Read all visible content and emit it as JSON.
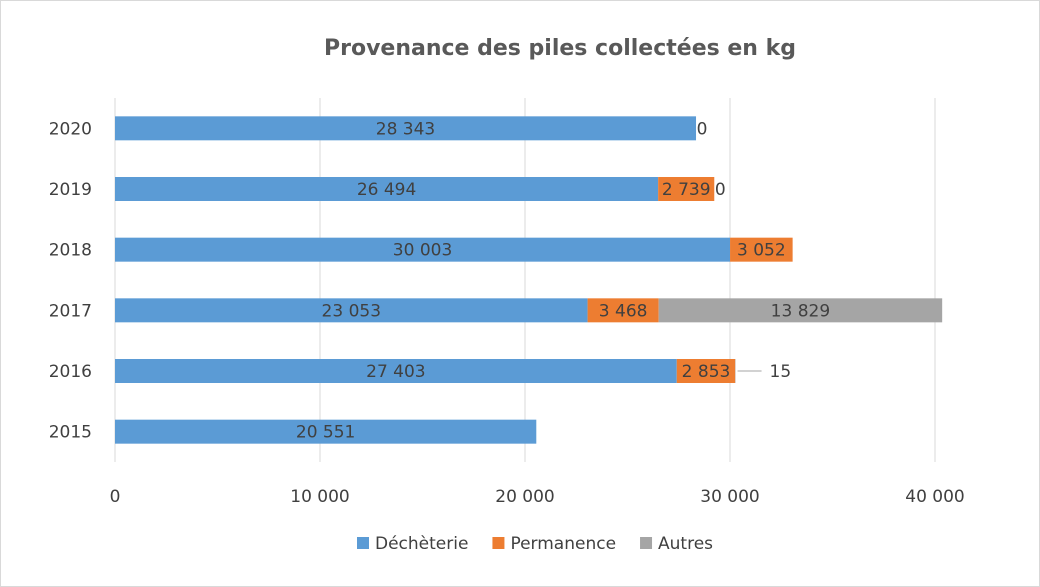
{
  "chart_data": {
    "type": "bar",
    "orientation": "horizontal",
    "stacked": true,
    "title": "Provenance des piles collectées en kg",
    "xlabel": "",
    "ylabel": "",
    "categories": [
      "2020",
      "2019",
      "2018",
      "2017",
      "2016",
      "2015"
    ],
    "series": [
      {
        "name": "Déchèterie",
        "color": "#5b9bd5",
        "values": [
          28343,
          26494,
          30003,
          23053,
          27403,
          20551
        ],
        "labels": [
          "28 343",
          "26 494",
          "30 003",
          "23 053",
          "27 403",
          "20 551"
        ]
      },
      {
        "name": "Permanence",
        "color": "#ed7d31",
        "values": [
          0,
          2739,
          3052,
          3468,
          2853,
          0
        ],
        "labels": [
          "",
          "2 739",
          "3 052",
          "3 468",
          "2 853",
          ""
        ]
      },
      {
        "name": "Autres",
        "color": "#a5a5a5",
        "values": [
          0,
          0,
          0,
          13829,
          15,
          0
        ],
        "labels": [
          "0",
          "0",
          "",
          "13 829",
          "15",
          ""
        ]
      }
    ],
    "xlim": [
      0,
      40000
    ],
    "xticks": [
      0,
      10000,
      20000,
      30000,
      40000
    ],
    "xtick_labels": [
      "0",
      "10 000",
      "20 000",
      "30 000",
      "40 000"
    ],
    "grid": "vertical",
    "legend_position": "bottom"
  }
}
